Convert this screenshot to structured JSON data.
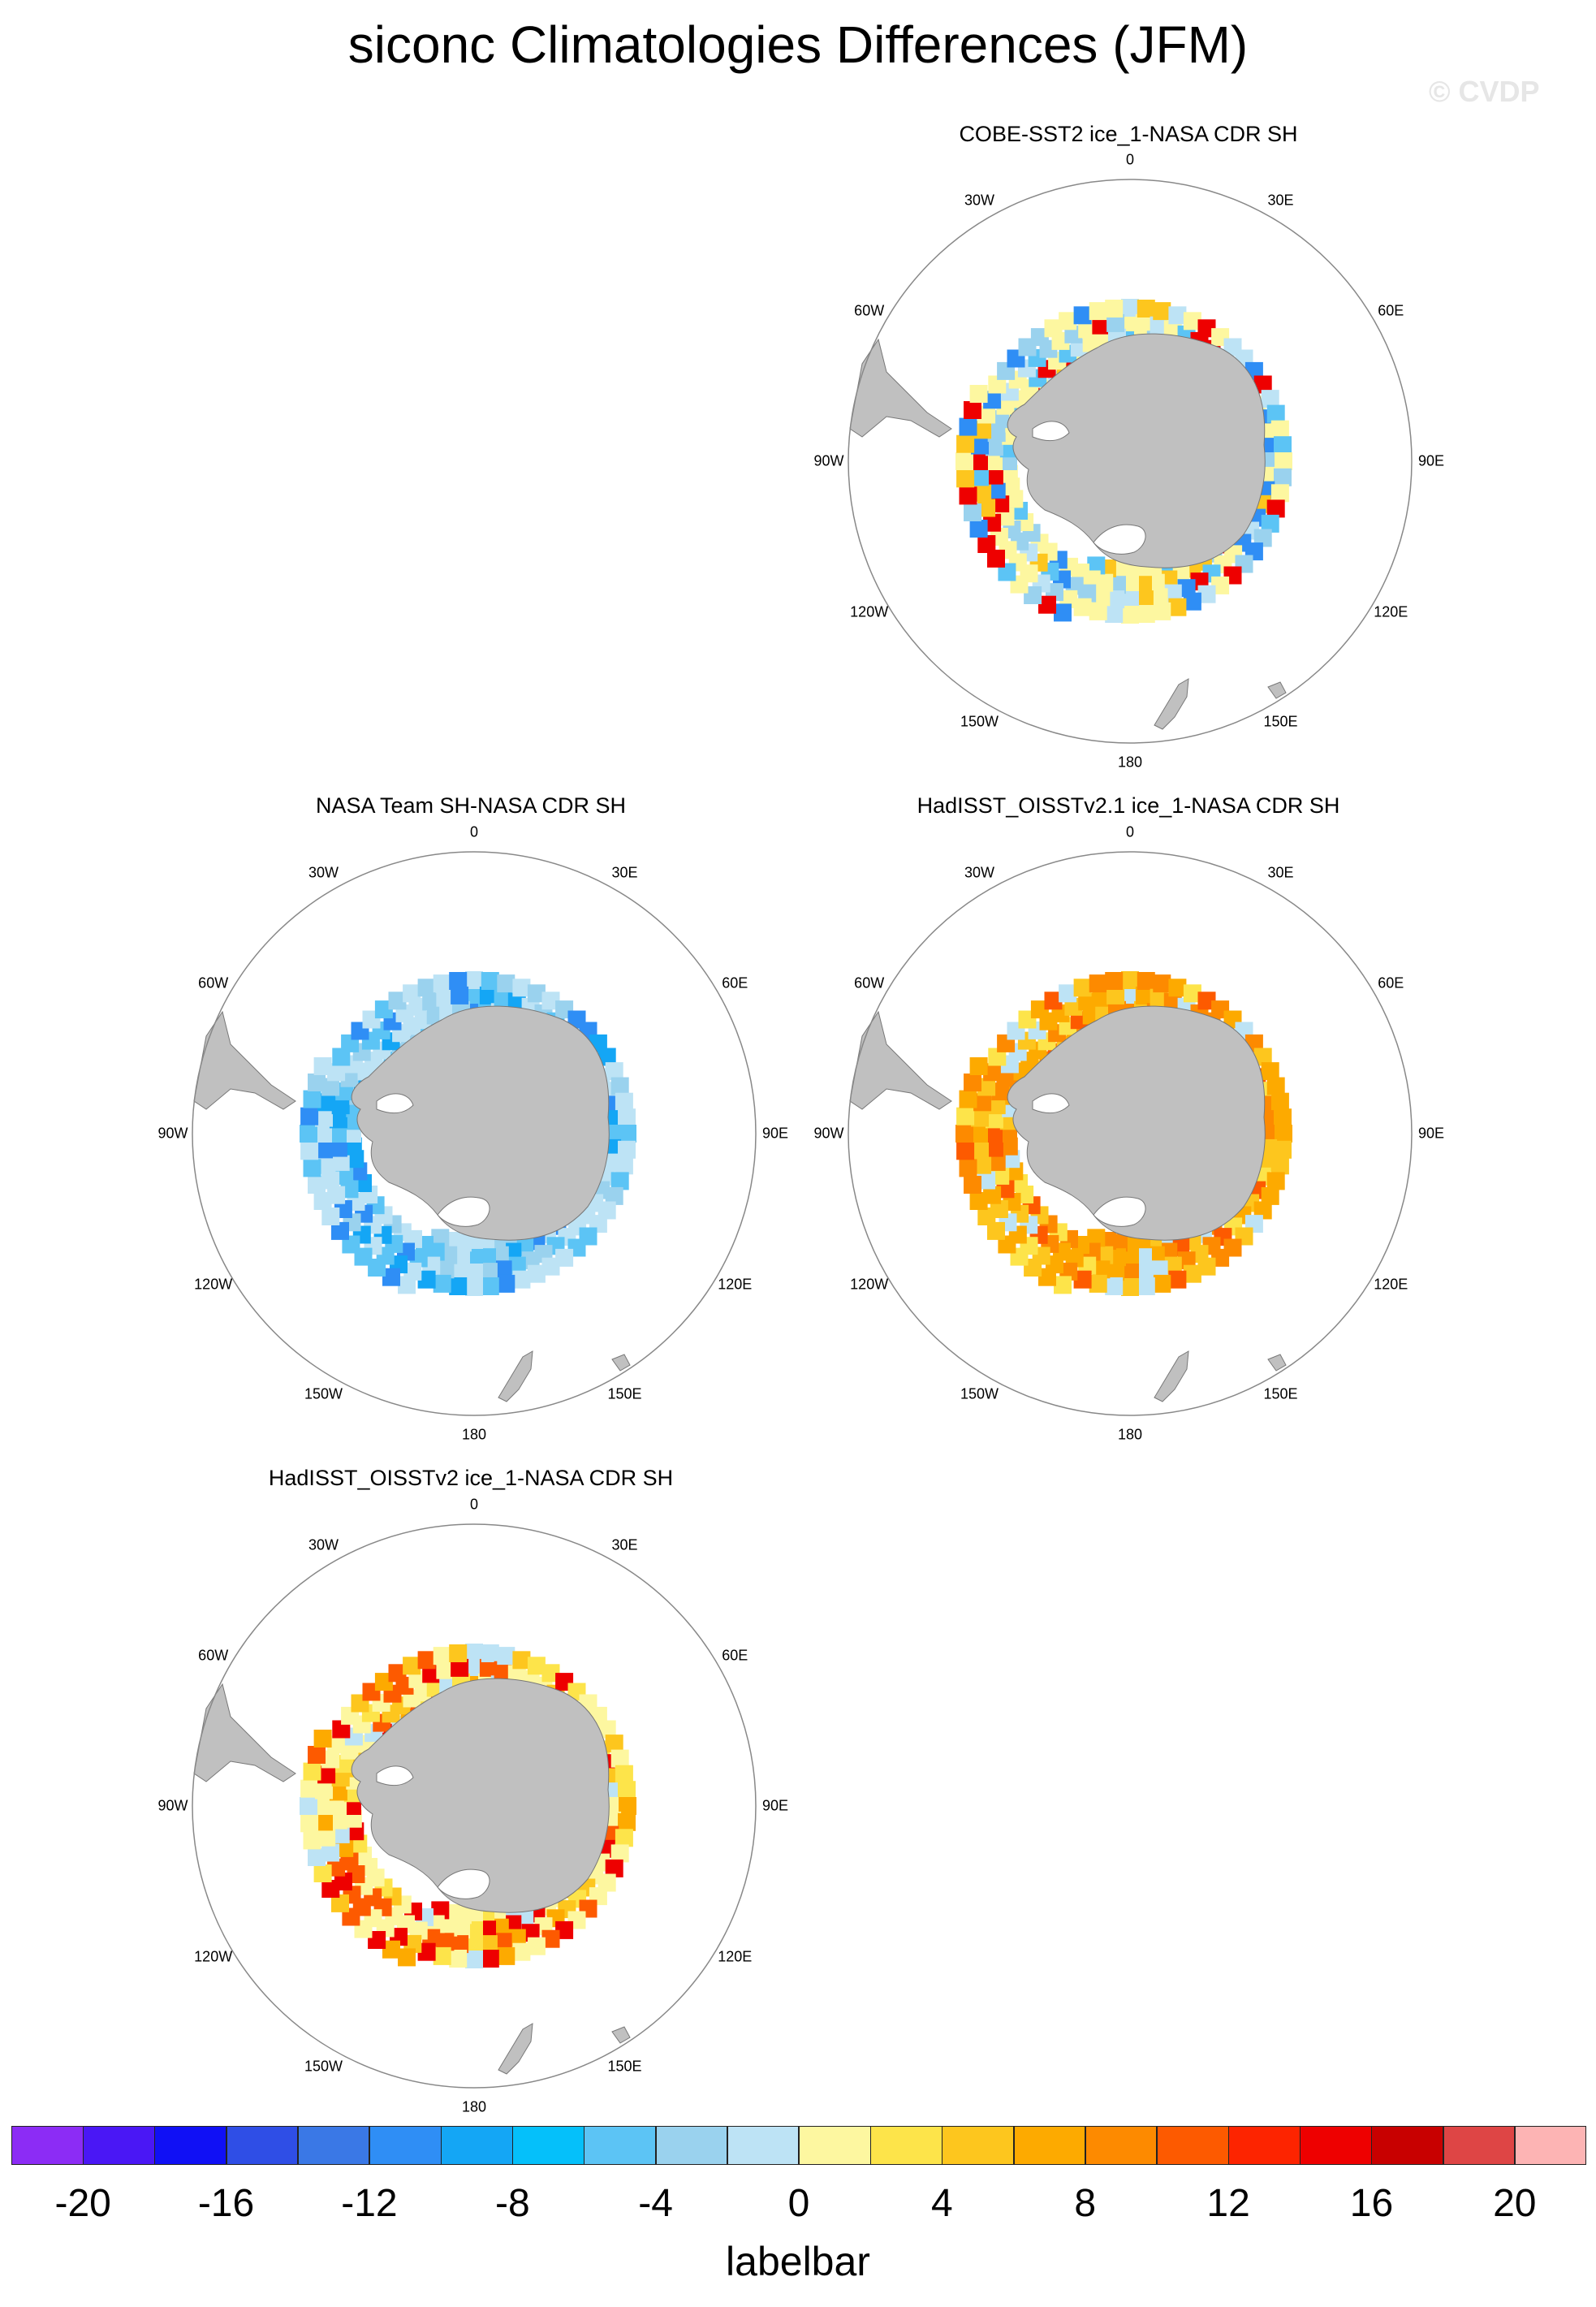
{
  "title": "siconc Climatologies Differences (JFM)",
  "watermark": "© CVDP",
  "panels": [
    {
      "title": "COBE-SST2 ice_1-NASA CDR SH",
      "pattern": "mixed-yellow-blue"
    },
    {
      "title": "NASA Team SH-NASA CDR SH",
      "pattern": "mostly-blue"
    },
    {
      "title": "HadISST_OISSTv2.1 ice_1-NASA CDR SH",
      "pattern": "mostly-orange"
    },
    {
      "title": "HadISST_OISSTv2 ice_1-NASA CDR SH",
      "pattern": "mixed-yellow-red"
    }
  ],
  "longitude_labels": [
    "0",
    "30E",
    "60E",
    "90E",
    "120E",
    "150E",
    "180",
    "150W",
    "120W",
    "90W",
    "60W",
    "30W"
  ],
  "labelbar": {
    "title": "labelbar",
    "tick_labels": [
      "-20",
      "-16",
      "-12",
      "-8",
      "-4",
      "0",
      "4",
      "8",
      "12",
      "16",
      "20"
    ],
    "colors": [
      "#8c2cf5",
      "#4a17f5",
      "#1010f5",
      "#2f4ee6",
      "#3a78e6",
      "#2f8ef5",
      "#14a6f5",
      "#05c0fa",
      "#5cc4f5",
      "#9ad2ee",
      "#bde3f5",
      "#fdf7a0",
      "#fde44a",
      "#fdc61e",
      "#fdaa00",
      "#fd8a00",
      "#fd5a00",
      "#fd2400",
      "#ee0000",
      "#c80000",
      "#de4545",
      "#fdb4b4"
    ]
  },
  "colors": {
    "land": "#c0c0c0",
    "frame": "#888888"
  }
}
